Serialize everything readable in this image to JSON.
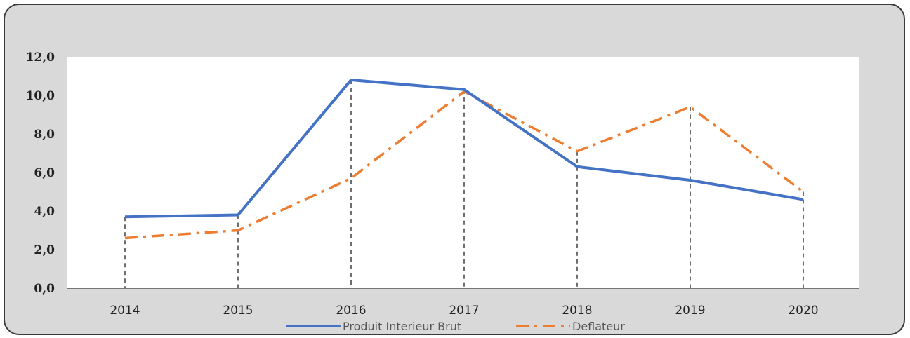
{
  "chart_data": {
    "type": "line",
    "categories": [
      "2014",
      "2015",
      "2016",
      "2017",
      "2018",
      "2019",
      "2020"
    ],
    "series": [
      {
        "name": "Produit Interieur Brut",
        "values": [
          3.7,
          3.8,
          10.8,
          10.3,
          6.3,
          5.6,
          4.6
        ],
        "color": "#4472c4",
        "style": "solid"
      },
      {
        "name": "Deflateur",
        "values": [
          2.6,
          3.0,
          5.7,
          10.2,
          7.1,
          9.4,
          5.0
        ],
        "color": "#ed7d31",
        "style": "dash-dot"
      }
    ],
    "yticks": [
      "0,0",
      "2,0",
      "4,0",
      "6,0",
      "8,0",
      "10,0",
      "12,0"
    ],
    "ylim": [
      0,
      12
    ],
    "drop_lines": true,
    "grid": false,
    "legend_position": "bottom"
  }
}
